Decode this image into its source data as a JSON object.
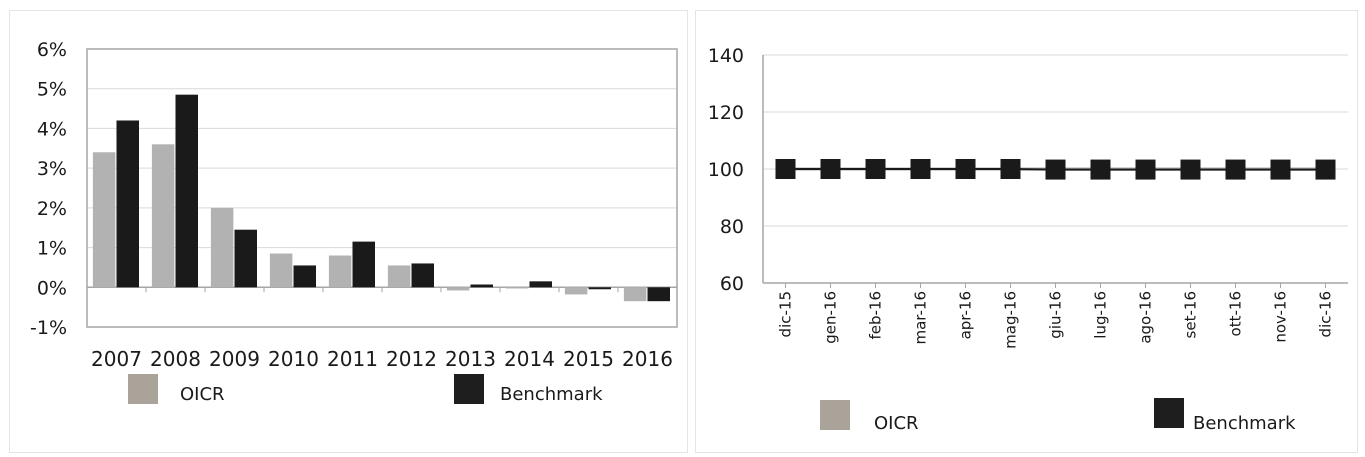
{
  "colors": {
    "oicr_bar": "#b2b2b2",
    "benchmark_bar": "#1a1a1a",
    "oicr_swatch": "#aaa399",
    "benchmark_swatch": "#1e1e1e",
    "oicr_line": "#a9a9a9",
    "benchmark_marker": "#1a1a1a",
    "axis": "#a6a6a6",
    "grid": "#d9d9d9"
  },
  "chart_data": [
    {
      "type": "bar",
      "title": "",
      "xlabel": "",
      "ylabel": "",
      "categories": [
        "2007",
        "2008",
        "2009",
        "2010",
        "2011",
        "2012",
        "2013",
        "2014",
        "2015",
        "2016"
      ],
      "series": [
        {
          "name": "OICR",
          "values": [
            3.4,
            3.6,
            2.0,
            0.85,
            0.8,
            0.55,
            -0.08,
            -0.03,
            -0.18,
            -0.35
          ]
        },
        {
          "name": "Benchmark",
          "values": [
            4.2,
            4.85,
            1.45,
            0.55,
            1.15,
            0.6,
            0.07,
            0.15,
            -0.05,
            -0.35
          ]
        }
      ],
      "ylim": [
        -1,
        6
      ],
      "yticks": [
        "6%",
        "5%",
        "4%",
        "3%",
        "2%",
        "1%",
        "0%",
        "-1%"
      ],
      "grid": true,
      "legend_position": "bottom"
    },
    {
      "type": "line",
      "title": "",
      "xlabel": "",
      "ylabel": "",
      "x": [
        "dic-15",
        "gen-16",
        "feb-16",
        "mar-16",
        "apr-16",
        "mag-16",
        "giu-16",
        "lug-16",
        "ago-16",
        "set-16",
        "ott-16",
        "nov-16",
        "dic-16"
      ],
      "series": [
        {
          "name": "OICR",
          "values": [
            100,
            100,
            100,
            100,
            100,
            100,
            100,
            100,
            100,
            100,
            100,
            100,
            100
          ]
        },
        {
          "name": "Benchmark",
          "values": [
            100,
            100,
            100,
            100,
            100,
            100,
            99.8,
            99.8,
            99.8,
            99.8,
            99.8,
            99.8,
            99.8
          ]
        }
      ],
      "ylim": [
        60,
        140
      ],
      "yticks": [
        "140",
        "120",
        "100",
        "80",
        "60"
      ],
      "grid": true,
      "legend_position": "bottom"
    }
  ]
}
